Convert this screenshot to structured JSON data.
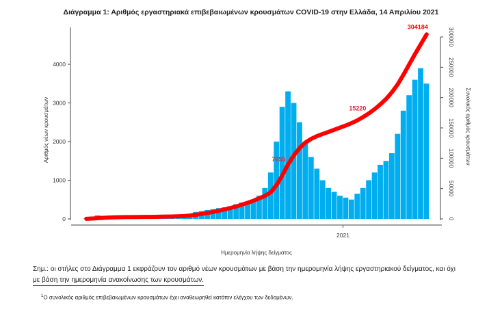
{
  "chart_data": {
    "type": "bar+line",
    "title": "Διάγραμμα 1: Αριθμός εργαστηριακά επιβεβαιωμένων κρουσμάτων COVID-19 στην Ελλάδα, 14 Απριλίου 2021",
    "xlabel": "Ημερομηνία λήψης δείγματος",
    "ylabel": "Αριθμός νέων κρουσμάτων",
    "y2label": "Συνολικός αριθμός κρουσμάτων",
    "x_ticks": [
      "2021"
    ],
    "x_tick_week_index": 45,
    "ylim": [
      0,
      4900
    ],
    "y_ticks": [
      0,
      1000,
      2000,
      3000,
      4000
    ],
    "y2lim": [
      0,
      310000
    ],
    "y2_ticks": [
      0,
      50000,
      100000,
      150000,
      200000,
      250000,
      300000
    ],
    "y2_tick_labels": [
      "0",
      "50000",
      "100000",
      "150000",
      "200000",
      "250000",
      "300000"
    ],
    "period": "weekly approximation",
    "series": [
      {
        "name": "new",
        "kind": "bar",
        "color": "#00aeef",
        "values": [
          10,
          60,
          90,
          80,
          70,
          50,
          30,
          20,
          15,
          15,
          10,
          10,
          15,
          20,
          25,
          30,
          40,
          60,
          120,
          180,
          200,
          230,
          250,
          280,
          300,
          330,
          380,
          420,
          450,
          500,
          600,
          800,
          1200,
          2000,
          2900,
          3300,
          3000,
          2500,
          2000,
          1600,
          1300,
          1000,
          800,
          700,
          600,
          550,
          500,
          650,
          800,
          1000,
          1200,
          1400,
          1500,
          1700,
          2200,
          2800,
          3200,
          3600,
          3900,
          3500
        ]
      },
      {
        "name": "cumulative",
        "kind": "line",
        "color": "#ff0000",
        "values": [
          100,
          500,
          1100,
          1700,
          2200,
          2600,
          2800,
          2900,
          3000,
          3100,
          3200,
          3300,
          3400,
          3600,
          3800,
          4000,
          4300,
          4700,
          5500,
          6800,
          8200,
          9800,
          11500,
          13500,
          15600,
          17900,
          20500,
          23500,
          26600,
          30000,
          34000,
          38000,
          44000,
          56000,
          72000,
          90000,
          105000,
          117000,
          126000,
          132000,
          136500,
          140000,
          143500,
          147000,
          150500,
          154000,
          158000,
          162500,
          168000,
          174000,
          181000,
          189000,
          198000,
          209000,
          222000,
          238000,
          255000,
          272000,
          288000,
          304184
        ]
      }
    ],
    "annotations": [
      {
        "text": "7655",
        "week_index": 35,
        "color": "#e8243c"
      },
      {
        "text": "15220",
        "week_index": 49,
        "color": "#e8243c"
      },
      {
        "text": "304184",
        "week_index": 59,
        "color": "#ff0000"
      }
    ]
  },
  "note": {
    "line1": "Σημ.: οι στήλες στο Διάγραμμα 1 εκφράζουν τον αριθμό νέων κρουσμάτων με βάση την ημερομηνία λήψης εργαστηριακού δείγματος, και όχι",
    "line2": "με βάση την ημερομηνία ανακοίνωσης των κρουσμάτων."
  },
  "footnote": {
    "mark": "1",
    "text": "Ο συνολικός αριθμός επιβεβαιωμένων κρουσμάτων έχει αναθεωρηθεί κατόπιν ελέγχου των δεδομένων."
  }
}
